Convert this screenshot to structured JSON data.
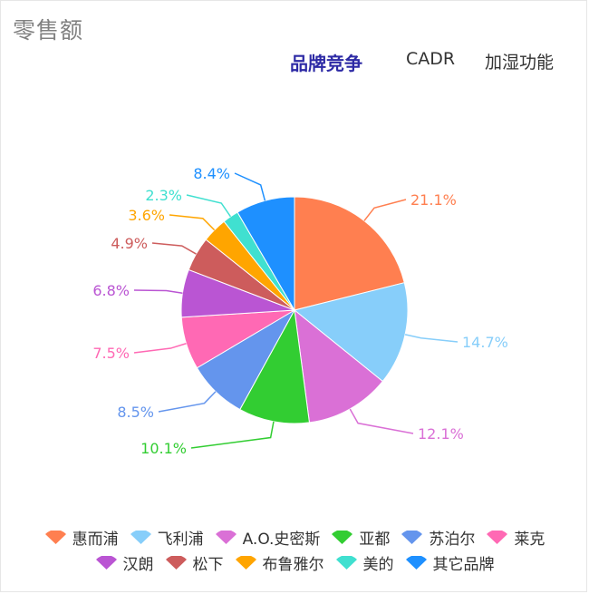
{
  "page": {
    "title": "零售额"
  },
  "tabs": [
    {
      "label": "品牌竞争",
      "active": true
    },
    {
      "label": "CADR",
      "active": false
    },
    {
      "label": "加湿功能",
      "active": false
    }
  ],
  "chart_data": {
    "type": "pie",
    "value_format": "percent",
    "start_angle_deg": 90,
    "direction": "clockwise",
    "slices": [
      {
        "name": "惠而浦",
        "value": 21.1,
        "label": "21.1%",
        "color": "#ff7f50"
      },
      {
        "name": "飞利浦",
        "value": 14.7,
        "label": "14.7%",
        "color": "#87cefa"
      },
      {
        "name": "A.O.史密斯",
        "value": 12.1,
        "label": "12.1%",
        "color": "#da70d6"
      },
      {
        "name": "亚都",
        "value": 10.1,
        "label": "10.1%",
        "color": "#32cd32"
      },
      {
        "name": "苏泊尔",
        "value": 8.5,
        "label": "8.5%",
        "color": "#6495ed"
      },
      {
        "name": "莱克",
        "value": 7.5,
        "label": "7.5%",
        "color": "#ff69b4"
      },
      {
        "name": "汉朗",
        "value": 6.8,
        "label": "6.8%",
        "color": "#ba55d3"
      },
      {
        "name": "松下",
        "value": 4.9,
        "label": "4.9%",
        "color": "#cd5c5c"
      },
      {
        "name": "布鲁雅尔",
        "value": 3.6,
        "label": "3.6%",
        "color": "#ffa500"
      },
      {
        "name": "美的",
        "value": 2.3,
        "label": "2.3%",
        "color": "#40e0d0"
      },
      {
        "name": "其它品牌",
        "value": 8.4,
        "label": "8.4%",
        "color": "#1e90ff"
      }
    ],
    "legend": {
      "placement": "bottom"
    }
  }
}
